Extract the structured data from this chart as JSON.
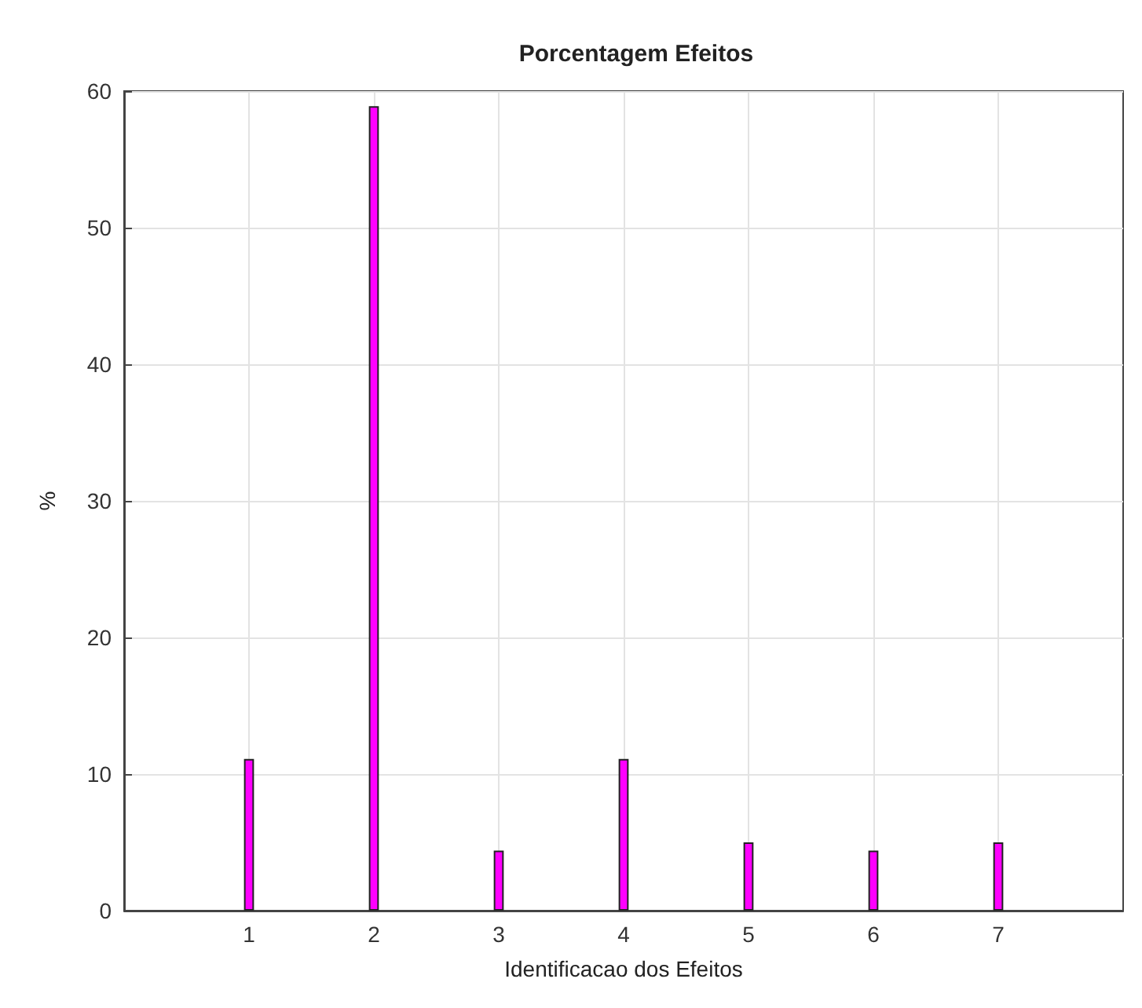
{
  "chart_data": {
    "type": "bar",
    "title": "Porcentagem Efeitos",
    "xlabel": "Identificacao dos Efeitos",
    "ylabel": "%",
    "x": [
      1,
      2,
      3,
      4,
      5,
      6,
      7
    ],
    "values": [
      11.1,
      58.9,
      4.4,
      11.1,
      5.0,
      4.4,
      5.0
    ],
    "color": "#ff00ff",
    "xlim": [
      0,
      8
    ],
    "xticks": [
      1,
      2,
      3,
      4,
      5,
      6,
      7
    ],
    "ylim": [
      0,
      60
    ],
    "yticks": [
      0,
      10,
      20,
      30,
      40,
      50,
      60
    ],
    "grid": true
  }
}
